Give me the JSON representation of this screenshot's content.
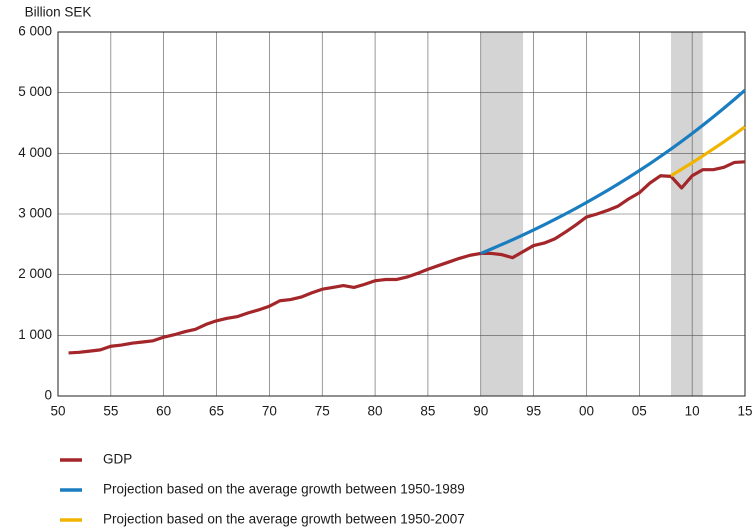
{
  "chart_data": {
    "type": "line",
    "y_label": "Billion SEK",
    "x": [
      1951,
      1952,
      1953,
      1954,
      1955,
      1956,
      1957,
      1958,
      1959,
      1960,
      1961,
      1962,
      1963,
      1964,
      1965,
      1966,
      1967,
      1968,
      1969,
      1970,
      1971,
      1972,
      1973,
      1974,
      1975,
      1976,
      1977,
      1978,
      1979,
      1980,
      1981,
      1982,
      1983,
      1984,
      1985,
      1986,
      1987,
      1988,
      1989,
      1990,
      1991,
      1992,
      1993,
      1994,
      1995,
      1996,
      1997,
      1998,
      1999,
      2000,
      2001,
      2002,
      2003,
      2004,
      2005,
      2006,
      2007,
      2008,
      2009,
      2010,
      2011,
      2012,
      2013,
      2014,
      2015
    ],
    "series": [
      {
        "name": "GDP",
        "color": "#a3262a",
        "values": [
          710,
          720,
          740,
          760,
          820,
          840,
          870,
          890,
          910,
          970,
          1010,
          1060,
          1100,
          1180,
          1240,
          1280,
          1310,
          1370,
          1420,
          1480,
          1570,
          1590,
          1630,
          1700,
          1760,
          1790,
          1820,
          1790,
          1840,
          1900,
          1920,
          1920,
          1960,
          2020,
          2090,
          2150,
          2210,
          2270,
          2320,
          2350,
          2350,
          2330,
          2280,
          2380,
          2480,
          2520,
          2590,
          2700,
          2820,
          2950,
          3000,
          3060,
          3130,
          3250,
          3350,
          3510,
          3630,
          3620,
          3430,
          3630,
          3730,
          3730,
          3770,
          3850,
          3860
        ]
      },
      {
        "name": "Projection based on the average growth between 1950-1989",
        "color": "#1a7dc0",
        "values": [
          null,
          null,
          null,
          null,
          null,
          null,
          null,
          null,
          null,
          null,
          null,
          null,
          null,
          null,
          null,
          null,
          null,
          null,
          null,
          null,
          null,
          null,
          null,
          null,
          null,
          null,
          null,
          null,
          null,
          null,
          null,
          null,
          null,
          null,
          null,
          null,
          null,
          null,
          null,
          2350,
          2423,
          2498,
          2575,
          2655,
          2737,
          2822,
          2910,
          3000,
          3093,
          3189,
          3288,
          3390,
          3495,
          3603,
          3715,
          3830,
          3949,
          4071,
          4197,
          4327,
          4462,
          4600,
          4743,
          4890,
          5041
        ]
      },
      {
        "name": "Projection based on the average growth between 1950-2007",
        "color": "#f0b400",
        "values": [
          null,
          null,
          null,
          null,
          null,
          null,
          null,
          null,
          null,
          null,
          null,
          null,
          null,
          null,
          null,
          null,
          null,
          null,
          null,
          null,
          null,
          null,
          null,
          null,
          null,
          null,
          null,
          null,
          null,
          null,
          null,
          null,
          null,
          null,
          null,
          null,
          null,
          null,
          null,
          null,
          null,
          null,
          null,
          null,
          null,
          null,
          null,
          null,
          null,
          null,
          null,
          null,
          null,
          null,
          null,
          null,
          null,
          3630,
          3737,
          3845,
          3957,
          4072,
          4190,
          4312,
          4437
        ]
      }
    ],
    "shaded_ranges": [
      [
        1990,
        1994
      ],
      [
        2008,
        2011
      ]
    ],
    "shade_color": "#d4d4d4",
    "xlim": [
      1950,
      2015
    ],
    "xticks": [
      {
        "value": 1950,
        "label": "50"
      },
      {
        "value": 1955,
        "label": "55"
      },
      {
        "value": 1960,
        "label": "60"
      },
      {
        "value": 1965,
        "label": "65"
      },
      {
        "value": 1970,
        "label": "70"
      },
      {
        "value": 1975,
        "label": "75"
      },
      {
        "value": 1980,
        "label": "80"
      },
      {
        "value": 1985,
        "label": "85"
      },
      {
        "value": 1990,
        "label": "90"
      },
      {
        "value": 1995,
        "label": "95"
      },
      {
        "value": 2000,
        "label": "00"
      },
      {
        "value": 2005,
        "label": "05"
      },
      {
        "value": 2010,
        "label": "10"
      },
      {
        "value": 2015,
        "label": "15"
      }
    ],
    "ylim": [
      0,
      6000
    ],
    "yticks": [
      0,
      {
        "value": 1000,
        "label": "1 000"
      },
      {
        "value": 2000,
        "label": "2 000"
      },
      {
        "value": 3000,
        "label": "3 000"
      },
      {
        "value": 4000,
        "label": "4 000"
      },
      {
        "value": 5000,
        "label": "5 000"
      },
      {
        "value": 6000,
        "label": "6 000"
      }
    ],
    "grid": true
  }
}
